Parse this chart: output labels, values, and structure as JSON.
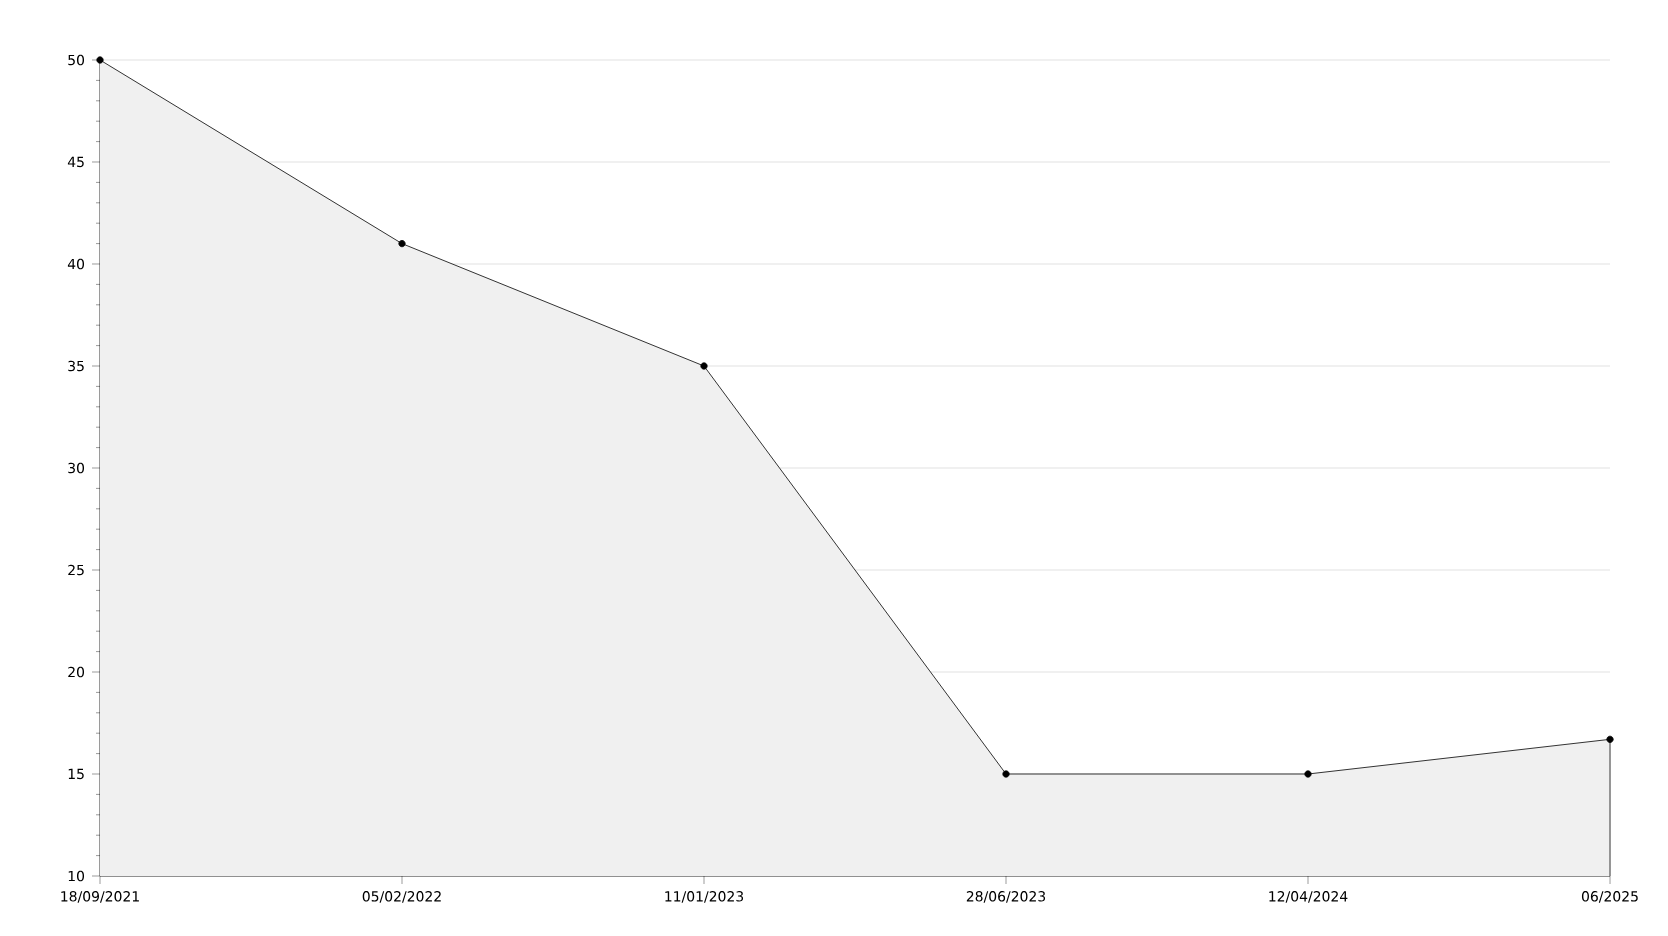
{
  "chart_data": {
    "type": "area",
    "categories": [
      "18/09/2021",
      "05/02/2022",
      "11/01/2023",
      "28/06/2023",
      "12/04/2024",
      "06/2025"
    ],
    "series": [
      {
        "color": "#000000",
        "values": [
          50,
          41,
          35,
          15,
          15,
          16.7
        ]
      }
    ],
    "ylim": [
      10,
      50
    ],
    "yticks": [
      10,
      15,
      20,
      25,
      30,
      35,
      40,
      45,
      50
    ],
    "grid": "y",
    "marker": "circle",
    "line_style": "solid"
  }
}
